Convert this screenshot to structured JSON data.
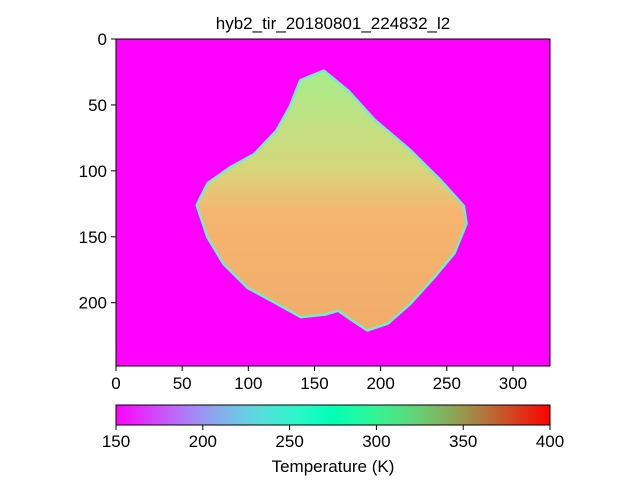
{
  "chart_data": [
    {
      "type": "heatmap",
      "title": "hyb2_tir_20180801_224832_l2",
      "xlim": [
        0,
        328
      ],
      "ylim": [
        248,
        0
      ],
      "xticks": [
        "0",
        "50",
        "100",
        "150",
        "200",
        "250",
        "300"
      ],
      "xtick_values": [
        0,
        50,
        100,
        150,
        200,
        250,
        300
      ],
      "yticks": [
        "0",
        "50",
        "100",
        "150",
        "200"
      ],
      "ytick_values": [
        0,
        50,
        100,
        150,
        200
      ],
      "background_value": 150,
      "body_value_range": [
        280,
        350
      ],
      "body_outline_pixels": [
        [
          157,
          25
        ],
        [
          175,
          40
        ],
        [
          195,
          62
        ],
        [
          222,
          85
        ],
        [
          245,
          108
        ],
        [
          262,
          127
        ],
        [
          264,
          140
        ],
        [
          255,
          162
        ],
        [
          240,
          180
        ],
        [
          222,
          200
        ],
        [
          205,
          215
        ],
        [
          190,
          220
        ],
        [
          178,
          212
        ],
        [
          168,
          205
        ],
        [
          158,
          208
        ],
        [
          140,
          210
        ],
        [
          122,
          200
        ],
        [
          100,
          188
        ],
        [
          82,
          170
        ],
        [
          70,
          150
        ],
        [
          62,
          126
        ],
        [
          70,
          110
        ],
        [
          87,
          98
        ],
        [
          105,
          88
        ],
        [
          122,
          70
        ],
        [
          132,
          52
        ],
        [
          140,
          32
        ]
      ]
    },
    {
      "type": "colorbar",
      "label": "Temperature (K)",
      "range": [
        150,
        400
      ],
      "ticks": [
        "150",
        "200",
        "250",
        "300",
        "350",
        "400"
      ],
      "tick_values": [
        150,
        200,
        250,
        300,
        350,
        400
      ],
      "colormap": "rainbow"
    }
  ]
}
